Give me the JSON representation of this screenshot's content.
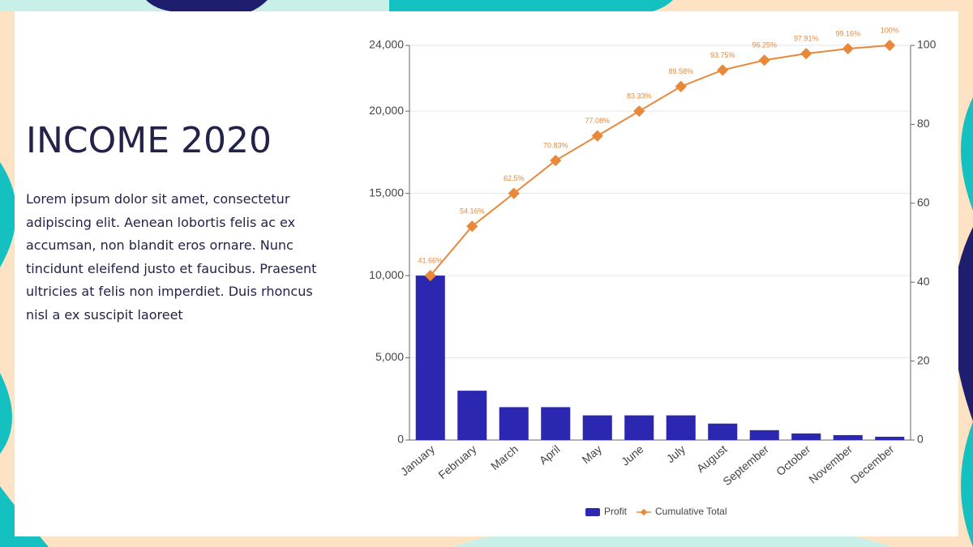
{
  "slide": {
    "title": "INCOME 2020",
    "body": "Lorem ipsum dolor sit amet, consectetur adipiscing elit. Aenean lobortis felis ac ex accumsan, non blandit eros ornare. Nunc tincidunt eleifend justo et faucibus. Praesent ultricies at felis non imperdiet. Duis rhoncus nisl a ex suscipit laoreet"
  },
  "chart_data": {
    "type": "pareto",
    "categories": [
      "January",
      "February",
      "March",
      "April",
      "May",
      "June",
      "July",
      "August",
      "September",
      "October",
      "November",
      "December"
    ],
    "series": [
      {
        "name": "Profit",
        "type": "bar",
        "color": "#2b27b0",
        "values": [
          10000,
          3000,
          2000,
          2000,
          1500,
          1500,
          1500,
          1000,
          600,
          400,
          300,
          200
        ]
      },
      {
        "name": "Cumulative Total",
        "type": "line",
        "axis": "y2",
        "color": "#e8883a",
        "values": [
          41.66,
          54.16,
          62.5,
          70.83,
          77.08,
          83.33,
          89.58,
          93.75,
          96.25,
          97.91,
          99.16,
          100
        ],
        "value_labels": [
          "41.66%",
          "54.16%",
          "62.5%",
          "70.83%",
          "77.08%",
          "83.33%",
          "89.58%",
          "93.75%",
          "96.25%",
          "97.91%",
          "99.16%",
          "100%"
        ]
      }
    ],
    "ylim": [
      0,
      24000
    ],
    "yticks": [
      0,
      {
        "value": 5000,
        "label": "5,000"
      },
      {
        "value": 10000,
        "label": "10,000"
      },
      {
        "value": 15000,
        "label": "15,000"
      },
      {
        "value": 20000,
        "label": "20,000"
      },
      {
        "value": 24000,
        "label": "24,000"
      }
    ],
    "y2lim": [
      0,
      100
    ],
    "y2ticks": [
      0,
      20,
      40,
      60,
      80,
      100
    ],
    "grid": true,
    "legend": "bottom"
  }
}
